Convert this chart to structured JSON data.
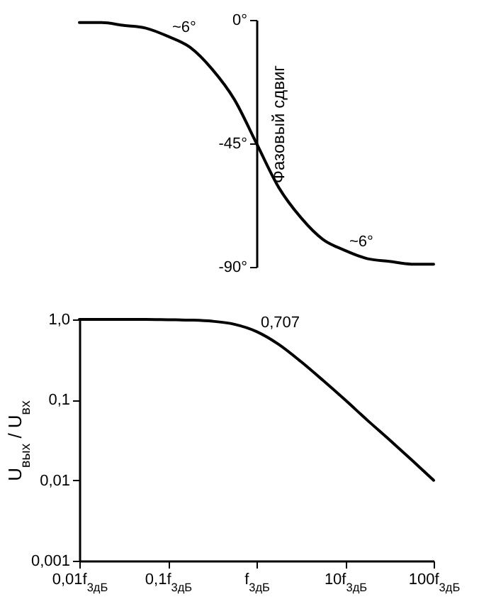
{
  "chart_data": [
    {
      "type": "line",
      "ylabel": "Фазовый сдвиг",
      "ylim": [
        -90,
        0
      ],
      "yticks": [
        {
          "value": 0,
          "label": "0°"
        },
        {
          "value": -45,
          "label": "-45°"
        },
        {
          "value": -90,
          "label": "-90°"
        }
      ],
      "tick_labels": "y",
      "categories": [
        "0,01f$_{3дБ}$",
        null,
        null,
        null,
        "0,1f$_{3дБ}$",
        null,
        null,
        null,
        "f$_{3дБ}$",
        null,
        null,
        null,
        "10f$_{3дБ}$",
        null,
        null,
        null,
        "100f$_{3дБ}$"
      ],
      "series": [
        {
          "color": "#000000",
          "values": [
            -1,
            -1,
            -2,
            -3,
            -6,
            -10,
            -18,
            -29,
            -45,
            -61,
            -72,
            -80,
            -84,
            -87,
            -88,
            -89,
            -89
          ]
        }
      ],
      "annotations": [
        {
          "text": "~6°",
          "x": "0,1f$_{3дБ}$",
          "y": -6
        },
        {
          "text": "~6°",
          "x": "10f$_{3дБ}$",
          "y": -84
        }
      ]
    },
    {
      "type": "line",
      "ylabel": "U$_{вых}$ / U$_{вх}$",
      "log": "y",
      "ylim": [
        0.001,
        1
      ],
      "yticks": [
        {
          "value": 1,
          "label": "1,0"
        },
        {
          "value": 0.1,
          "label": "0,1"
        },
        {
          "value": 0.01,
          "label": "0,01"
        },
        {
          "value": 0.001,
          "label": "0,001"
        }
      ],
      "categories": [
        "0,01f$_{3дБ}$",
        null,
        null,
        null,
        "0,1f$_{3дБ}$",
        null,
        null,
        null,
        "f$_{3дБ}$",
        null,
        null,
        null,
        "10f$_{3дБ}$",
        null,
        null,
        null,
        "100f$_{3дБ}$"
      ],
      "series": [
        {
          "color": "#000000",
          "values": [
            1,
            1,
            1,
            1,
            0.99,
            0.98,
            0.95,
            0.87,
            0.707,
            0.49,
            0.3,
            0.175,
            0.1,
            0.056,
            0.032,
            0.018,
            0.01
          ]
        }
      ],
      "annotations": [
        {
          "text": "0,707",
          "x": "f$_{3дБ}$",
          "y": 0.707
        }
      ]
    }
  ]
}
